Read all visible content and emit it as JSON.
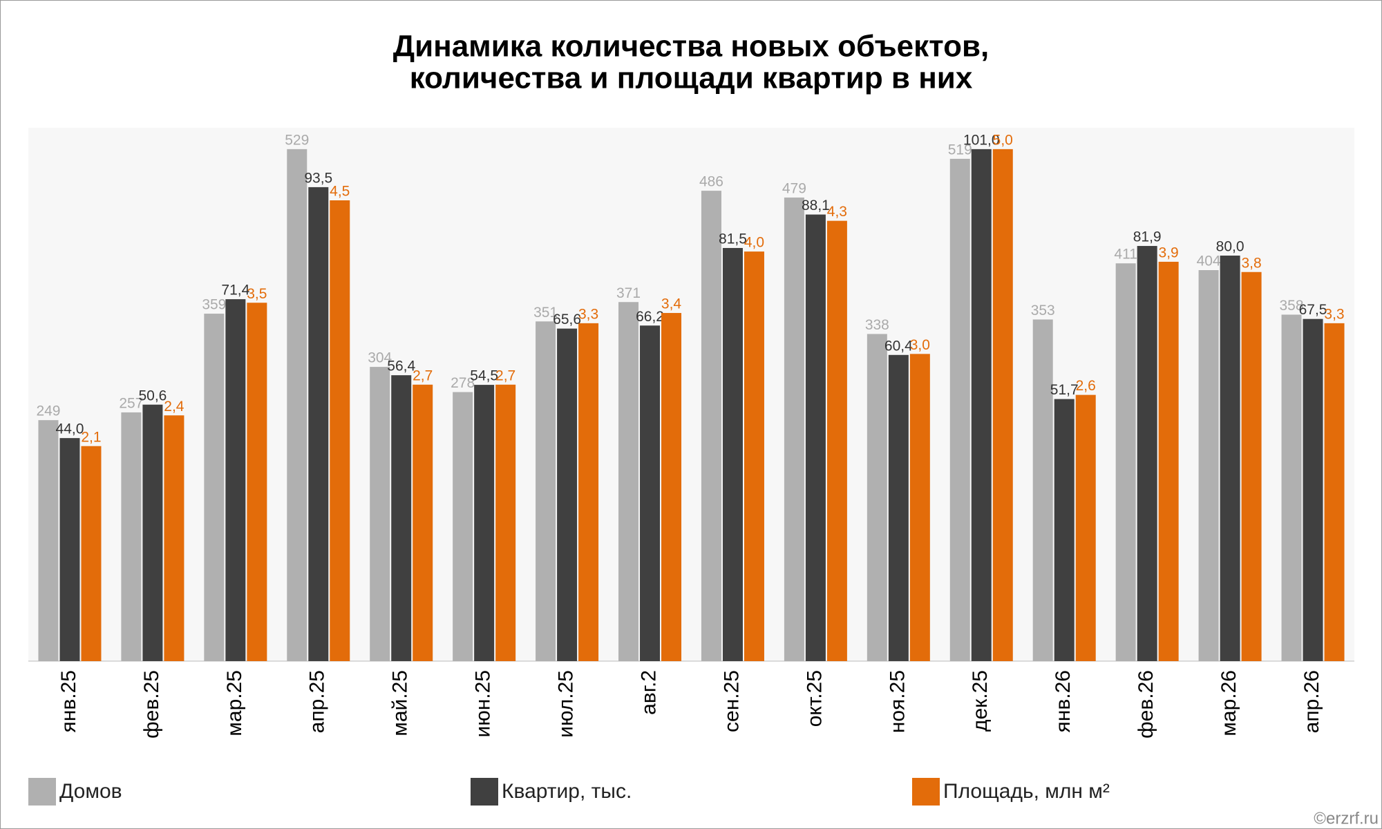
{
  "chart_data": {
    "type": "bar",
    "title": [
      "Динамика количества новых объектов,",
      "количества и площади квартир в них"
    ],
    "categories": [
      "янв.25",
      "фев.25",
      "мар.25",
      "апр.25",
      "май.25",
      "июн.25",
      "июл.25",
      "авг.2",
      "сен.25",
      "окт.25",
      "ноя.25",
      "дек.25",
      "янв.26",
      "фев.26",
      "мар.26",
      "апр.26"
    ],
    "series": [
      {
        "name": "Домов",
        "color": "#b0b0b0",
        "label_color": "#aaaaaa",
        "values": [
          249,
          257,
          359,
          529,
          304,
          278,
          351,
          371,
          486,
          479,
          338,
          519,
          353,
          411,
          404,
          358
        ]
      },
      {
        "name": "Квартир, тыс.",
        "color": "#404040",
        "label_color": "#333333",
        "values": [
          44.0,
          50.6,
          71.4,
          93.5,
          56.4,
          54.5,
          65.6,
          66.2,
          81.5,
          88.1,
          60.4,
          101.0,
          51.7,
          81.9,
          80.0,
          67.5
        ],
        "value_labels": [
          "44,0",
          "50,6",
          "71,4",
          "93,5",
          "56,4",
          "54,5",
          "65,6",
          "66,2",
          "81,5",
          "88,1",
          "60,4",
          "101,0",
          "51,7",
          "81,9",
          "80,0",
          "67,5"
        ]
      },
      {
        "name": "Площадь, млн м²",
        "color": "#e36c0a",
        "label_color": "#e36c0a",
        "values": [
          2.1,
          2.4,
          3.5,
          4.5,
          2.7,
          2.7,
          3.3,
          3.4,
          4.0,
          4.3,
          3.0,
          5.0,
          2.6,
          3.9,
          3.8,
          3.3
        ],
        "value_labels": [
          "2,1",
          "2,4",
          "3,5",
          "4,5",
          "2,7",
          "2,7",
          "3,3",
          "3,4",
          "4,0",
          "4,3",
          "3,0",
          "5,0",
          "2,6",
          "3,9",
          "3,8",
          "3,3"
        ]
      }
    ],
    "source": "©erzrf.ru"
  }
}
